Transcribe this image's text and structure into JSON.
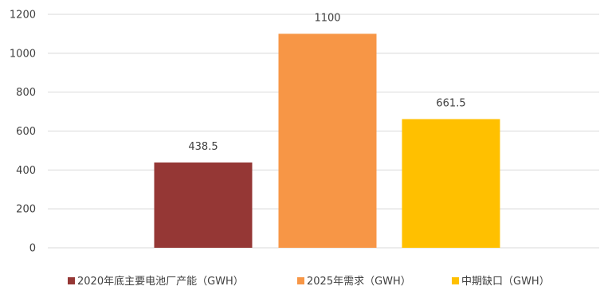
{
  "chart_data": {
    "type": "bar",
    "categories": [
      "2020年底主要电池厂产能（GWH）",
      "2025年需求（GWH）",
      "中期缺口（GWH）"
    ],
    "values": [
      438.5,
      1100,
      661.5
    ],
    "value_labels": [
      "438.5",
      "1100",
      "661.5"
    ],
    "colors": [
      "#953735",
      "#f79646",
      "#ffc000"
    ],
    "title": "",
    "xlabel": "",
    "ylabel": "",
    "ylim": [
      0,
      1200
    ],
    "yticks": [
      0,
      200,
      400,
      600,
      800,
      1000,
      1200
    ],
    "grid": true,
    "legend_position": "bottom"
  }
}
